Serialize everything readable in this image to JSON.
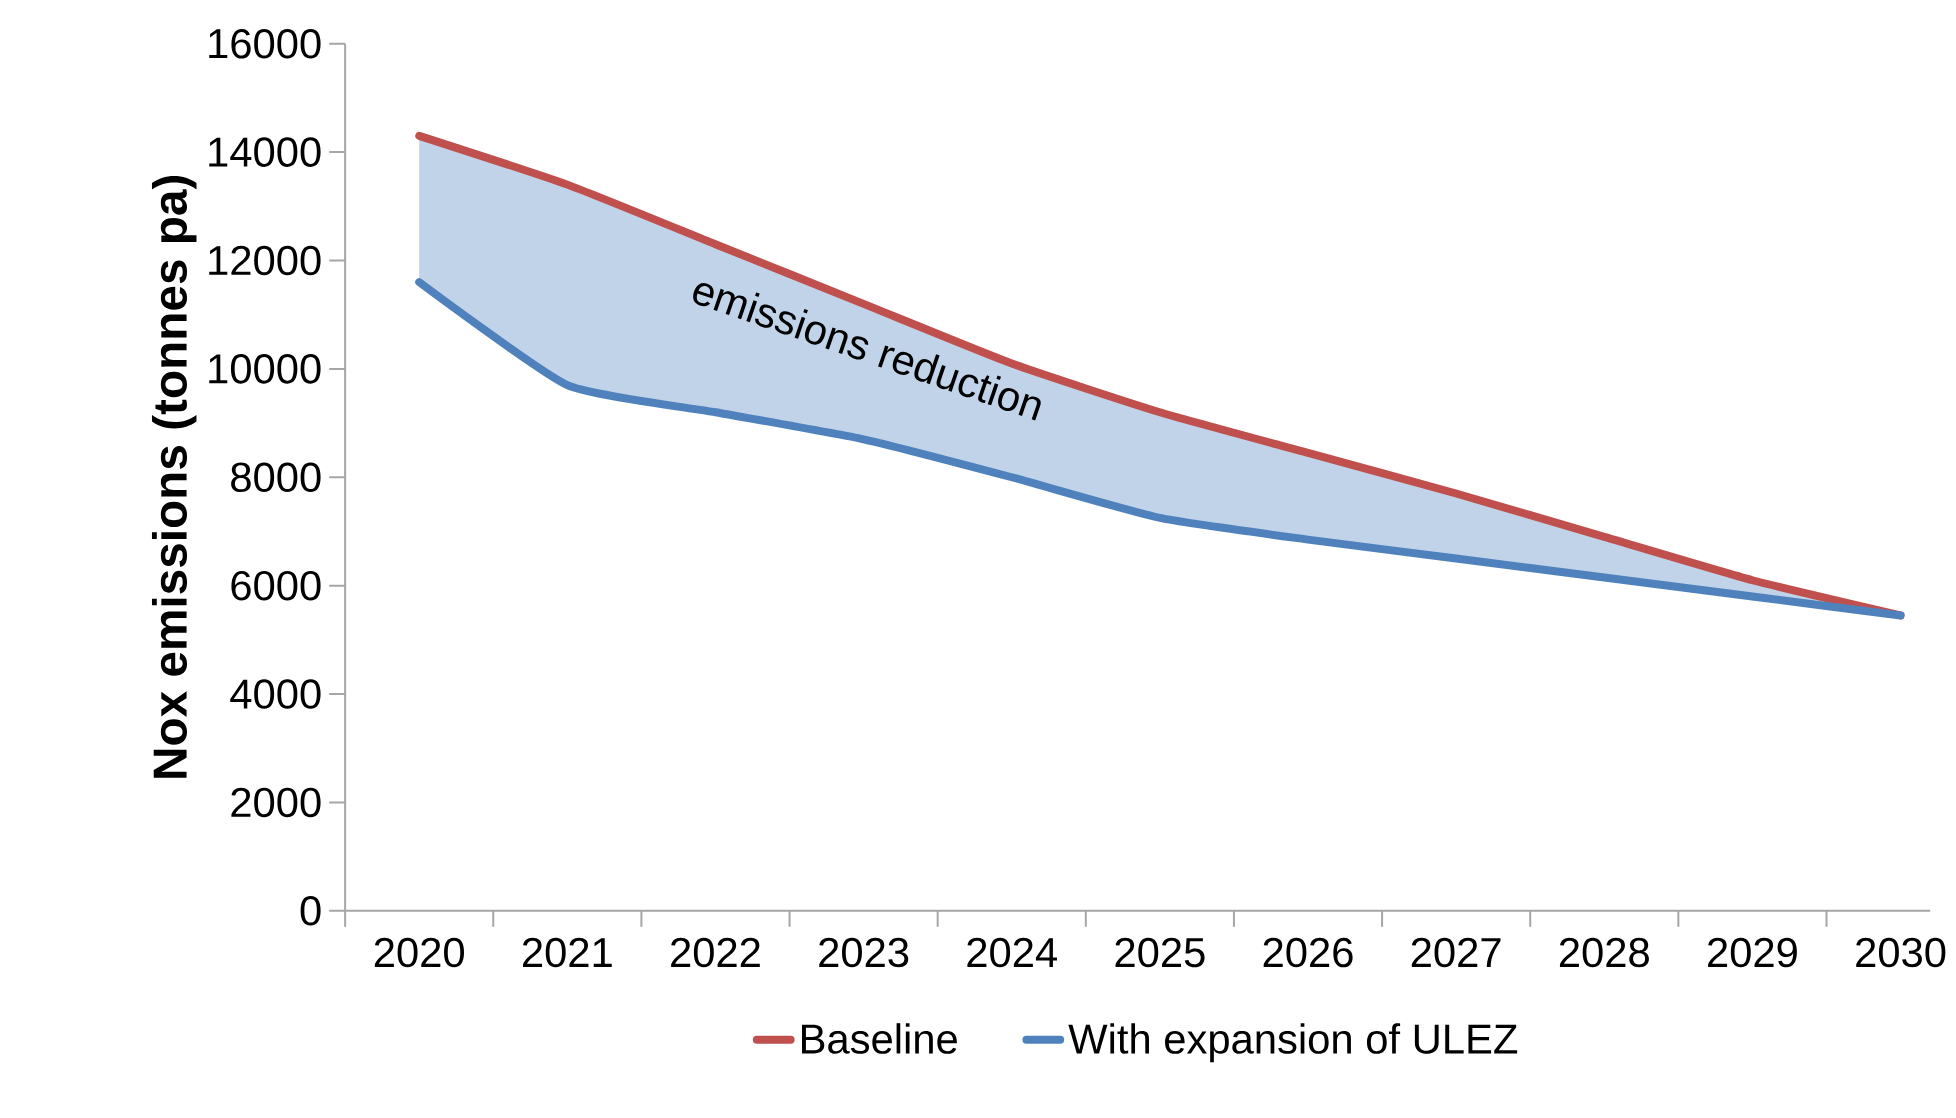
{
  "chart_data": {
    "type": "line",
    "ylabel": "Nox emissions (tonnes pa)",
    "categories": [
      "2020",
      "2021",
      "2022",
      "2023",
      "2024",
      "2025",
      "2026",
      "2027",
      "2028",
      "2029",
      "2030"
    ],
    "series": [
      {
        "name": "Baseline",
        "color": "#c0504d",
        "values": [
          14300,
          13400,
          12300,
          11200,
          10100,
          9200,
          8450,
          7700,
          6900,
          6100,
          5450
        ]
      },
      {
        "name": "With expansion of ULEZ",
        "color": "#4f81bd",
        "values": [
          11600,
          9700,
          9200,
          8700,
          8000,
          7250,
          6850,
          6500,
          6150,
          5800,
          5450
        ]
      }
    ],
    "ylim": [
      0,
      16000
    ],
    "yticks": [
      0,
      2000,
      4000,
      6000,
      8000,
      10000,
      12000,
      14000,
      16000
    ],
    "annotations": [
      "emissions reduction"
    ],
    "grid": false,
    "legend": "bottom",
    "marker": "none",
    "line_style": "solid"
  }
}
